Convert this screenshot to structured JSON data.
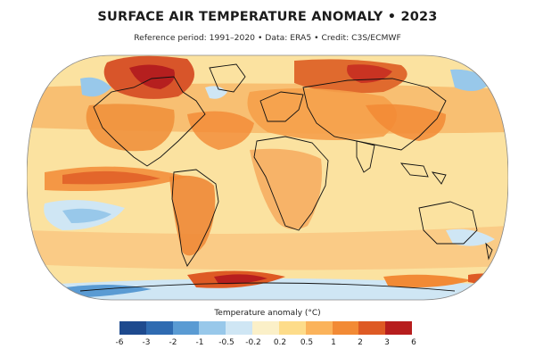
{
  "header": {
    "title": "SURFACE AIR TEMPERATURE ANOMALY • 2023",
    "subtitle": "Reference period: 1991–2020 • Data: ERA5 • Credit: C3S/ECMWF"
  },
  "legend": {
    "title": "Temperature anomaly (°C)",
    "ticks": [
      "-6",
      "-3",
      "-2",
      "-1",
      "-0.5",
      "-0.2",
      "0.2",
      "0.5",
      "1",
      "2",
      "3",
      "6"
    ],
    "colors": [
      "#1e4a8e",
      "#2f6bb1",
      "#5a9bd3",
      "#98c8ea",
      "#cfe6f4",
      "#fbf0c8",
      "#fddc8a",
      "#fbb35b",
      "#f28a35",
      "#de5a24",
      "#b71e1e"
    ]
  },
  "map": {
    "background_color": "#fbe6a8",
    "coastline_color": "#111111"
  }
}
